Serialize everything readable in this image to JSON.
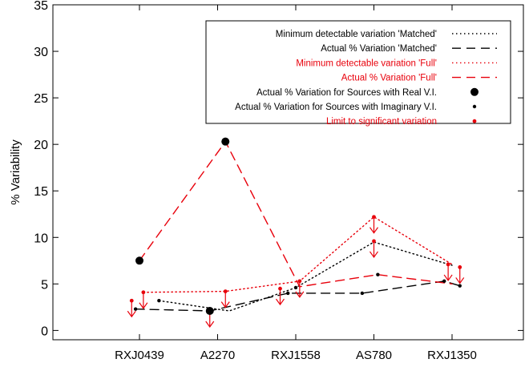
{
  "chart_data": {
    "type": "line",
    "categories": [
      "RXJ0439",
      "A2270",
      "RXJ1558",
      "AS780",
      "RXJ1350"
    ],
    "ylabel": "% Variability",
    "xlabel": "",
    "ylim": [
      -1,
      35
    ],
    "yticks": [
      0,
      5,
      10,
      15,
      20,
      25,
      30,
      35
    ],
    "grid": false,
    "legend_position": "top-right",
    "series": [
      {
        "name": "Minimum detectable variation 'Matched'",
        "color": "#000000",
        "style": "dotted",
        "marker": "none",
        "points": [
          {
            "x": 0.25,
            "y": 3.2
          },
          {
            "x": 1.15,
            "y": 2.1
          },
          {
            "x": 2.0,
            "y": 4.6
          },
          {
            "x": 3.0,
            "y": 9.5
          },
          {
            "x": 4.0,
            "y": 7.0
          }
        ]
      },
      {
        "name": "Actual % Variation 'Matched'",
        "color": "#000000",
        "style": "dashed",
        "marker": "none",
        "points": [
          {
            "x": -0.05,
            "y": 2.3
          },
          {
            "x": 0.9,
            "y": 2.1
          },
          {
            "x": 1.9,
            "y": 4.0
          },
          {
            "x": 2.85,
            "y": 4.0
          },
          {
            "x": 3.9,
            "y": 5.3
          },
          {
            "x": 4.1,
            "y": 4.8
          }
        ]
      },
      {
        "name": "Minimum detectable variation 'Full'",
        "color": "#e8000b",
        "style": "dotted",
        "marker": "none",
        "points": [
          {
            "x": 0.05,
            "y": 4.1
          },
          {
            "x": 1.1,
            "y": 4.2
          },
          {
            "x": 2.05,
            "y": 5.3
          },
          {
            "x": 3.0,
            "y": 12.2
          },
          {
            "x": 4.0,
            "y": 7.1
          }
        ]
      },
      {
        "name": "Actual % Variation 'Full'",
        "color": "#e8000b",
        "style": "dashed",
        "marker": "none",
        "points": [
          {
            "x": 0.0,
            "y": 7.5
          },
          {
            "x": 1.1,
            "y": 20.3
          },
          {
            "x": 2.05,
            "y": 4.7
          },
          {
            "x": 3.05,
            "y": 6.0
          },
          {
            "x": 4.0,
            "y": 5.0
          }
        ]
      }
    ],
    "markers": {
      "real_vi": {
        "name": "Actual % Variation for Sources with Real V.I.",
        "color": "#000000",
        "points": [
          {
            "x": 0.0,
            "y": 7.5
          },
          {
            "x": 1.1,
            "y": 20.3
          },
          {
            "x": 0.9,
            "y": 2.1
          }
        ]
      },
      "imaginary_vi": {
        "name": "Actual % Variation for Sources with Imaginary V.I.",
        "color": "#000000",
        "points": [
          {
            "x": -0.05,
            "y": 2.3
          },
          {
            "x": 0.25,
            "y": 3.2
          },
          {
            "x": 1.9,
            "y": 4.0
          },
          {
            "x": 2.0,
            "y": 4.6
          },
          {
            "x": 2.85,
            "y": 4.0
          },
          {
            "x": 3.05,
            "y": 6.0
          },
          {
            "x": 3.9,
            "y": 5.3
          },
          {
            "x": 4.1,
            "y": 4.8
          }
        ]
      },
      "limit": {
        "name": "Limit to significant variation",
        "color": "#e8000b",
        "points": [
          {
            "x": -0.1,
            "y": 3.2
          },
          {
            "x": 0.05,
            "y": 4.1
          },
          {
            "x": 1.1,
            "y": 4.2
          },
          {
            "x": 1.8,
            "y": 4.5
          },
          {
            "x": 2.05,
            "y": 5.3
          },
          {
            "x": 3.0,
            "y": 9.6
          },
          {
            "x": 3.0,
            "y": 12.2
          },
          {
            "x": 3.95,
            "y": 7.1
          },
          {
            "x": 4.1,
            "y": 6.8
          }
        ]
      }
    },
    "upper_limit_arrows": {
      "color": "#e8000b",
      "points": [
        {
          "x": -0.1,
          "y": 3.2
        },
        {
          "x": 0.05,
          "y": 4.1
        },
        {
          "x": 0.9,
          "y": 2.1
        },
        {
          "x": 1.1,
          "y": 4.2
        },
        {
          "x": 1.8,
          "y": 4.5
        },
        {
          "x": 2.05,
          "y": 5.3
        },
        {
          "x": 3.0,
          "y": 9.6
        },
        {
          "x": 3.0,
          "y": 12.2
        },
        {
          "x": 3.95,
          "y": 7.1
        },
        {
          "x": 4.1,
          "y": 6.8
        }
      ]
    }
  }
}
